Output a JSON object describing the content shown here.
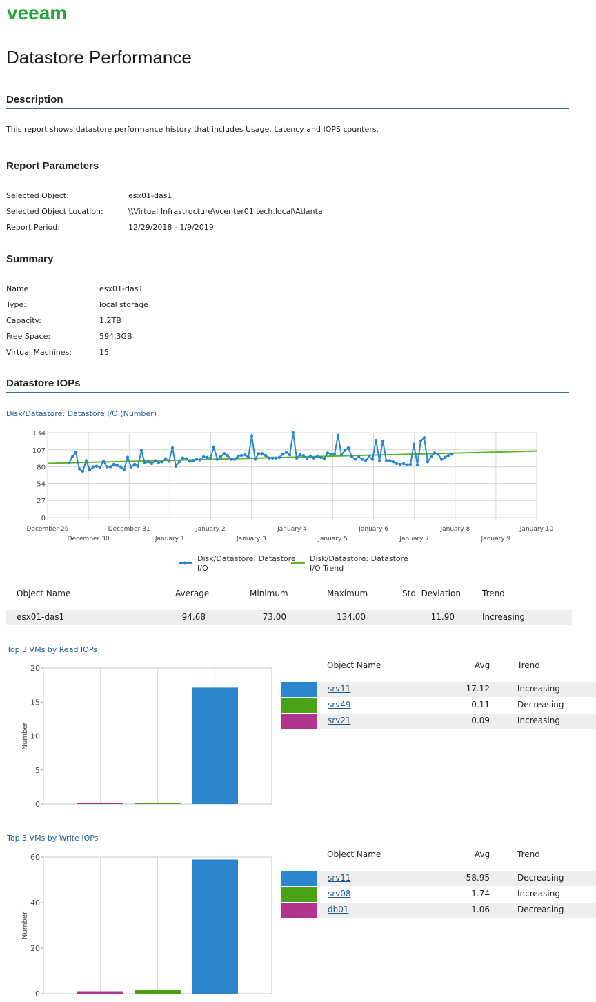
{
  "logo": "veeam",
  "page_title": "Datastore Performance",
  "colors": {
    "accent": "#22a637",
    "rule": "#3a6f93",
    "blue": "#2986cc",
    "green": "#4aa317",
    "purple": "#b0348e",
    "trend": "#5cb623"
  },
  "description": {
    "heading": "Description",
    "text": "This report shows datastore performance history that includes Usage, Latency and IOPS counters."
  },
  "parameters": {
    "heading": "Report Parameters",
    "items": [
      {
        "label": "Selected Object:",
        "value": "esx01-das1"
      },
      {
        "label": "Selected Object Location:",
        "value": "\\\\Virtual Infrastructure\\vcenter01.tech.local\\Atlanta"
      },
      {
        "label": "Report Period:",
        "value": "12/29/2018 - 1/9/2019"
      }
    ]
  },
  "summary": {
    "heading": "Summary",
    "items": [
      {
        "label": "Name:",
        "value": "esx01-das1"
      },
      {
        "label": "Type:",
        "value": "local storage"
      },
      {
        "label": "Capacity:",
        "value": "1.2TB"
      },
      {
        "label": "Free Space:",
        "value": "594.3GB"
      },
      {
        "label": "Virtual Machines:",
        "value": "15"
      }
    ]
  },
  "iops_section": {
    "heading": "Datastore IOPs",
    "chart_title": "Disk/Datastore: Datastore I/O (Number)",
    "table": {
      "headers": [
        "Object Name",
        "Average",
        "Minimum",
        "Maximum",
        "Std. Deviation",
        "Trend"
      ],
      "rows": [
        [
          "esx01-das1",
          "94.68",
          "73.00",
          "134.00",
          "11.90",
          "Increasing"
        ]
      ]
    }
  },
  "read_section": {
    "chart_title": "Top 3 VMs by Read IOPs",
    "headers": [
      "Object Name",
      "Avg",
      "Trend"
    ],
    "rows": [
      {
        "name": "srv11",
        "avg": "17.12",
        "trend": "Increasing",
        "color": "#2986cc"
      },
      {
        "name": "srv49",
        "avg": "0.11",
        "trend": "Decreasing",
        "color": "#4aa317"
      },
      {
        "name": "srv21",
        "avg": "0.09",
        "trend": "Increasing",
        "color": "#b0348e"
      }
    ]
  },
  "write_section": {
    "chart_title": "Top 3 VMs by Write IOPs",
    "headers": [
      "Object Name",
      "Avg",
      "Trend"
    ],
    "rows": [
      {
        "name": "srv11",
        "avg": "58.95",
        "trend": "Decreasing",
        "color": "#2986cc"
      },
      {
        "name": "srv08",
        "avg": "1.74",
        "trend": "Increasing",
        "color": "#4aa317"
      },
      {
        "name": "db01",
        "avg": "1.06",
        "trend": "Decreasing",
        "color": "#b0348e"
      }
    ]
  },
  "chart_data": [
    {
      "type": "line",
      "title": "Disk/Datastore: Datastore I/O (Number)",
      "y_ticks": [
        "134",
        "107",
        "80",
        "54",
        "27",
        "0"
      ],
      "ylim": [
        0,
        134
      ],
      "x_ticks": [
        "December 29",
        "December 30",
        "December 31",
        "January 1",
        "January 2",
        "January 3",
        "January 4",
        "January 5",
        "January 6",
        "January 7",
        "January 8",
        "January 9",
        "January 10"
      ],
      "series": [
        {
          "name": "Disk/Datastore: Datastore I/O",
          "values": [
            86,
            96,
            103,
            77,
            73,
            90,
            75,
            80,
            81,
            79,
            89,
            80,
            80,
            84,
            82,
            80,
            76,
            95,
            80,
            84,
            81,
            106,
            86,
            88,
            85,
            90,
            87,
            88,
            93,
            89,
            110,
            81,
            88,
            94,
            93,
            89,
            90,
            92,
            91,
            96,
            95,
            94,
            111,
            92,
            96,
            101,
            98,
            92,
            92,
            97,
            98,
            99,
            95,
            129,
            92,
            101,
            101,
            98,
            94,
            94,
            94,
            95,
            100,
            103,
            99,
            134,
            94,
            99,
            98,
            93,
            97,
            94,
            97,
            95,
            93,
            102,
            100,
            100,
            130,
            99,
            106,
            110,
            96,
            92,
            96,
            92,
            90,
            96,
            92,
            122,
            90,
            121,
            90,
            90,
            88,
            85,
            84,
            85,
            83,
            84,
            116,
            83,
            121,
            126,
            88,
            96,
            102,
            100,
            92,
            95,
            98,
            100
          ],
          "color": "#2986cc"
        },
        {
          "name": "Disk/Datastore: Datastore I/O Trend",
          "start": 85.5,
          "end": 105,
          "color": "#5cb623"
        }
      ],
      "legend": [
        "Disk/Datastore: Datastore I/O",
        "Disk/Datastore: Datastore I/O Trend"
      ]
    },
    {
      "type": "bar",
      "title": "Top 3 VMs by Read IOPs",
      "ylabel": "Number",
      "categories": [
        "srv21",
        "srv49",
        "srv11"
      ],
      "values": [
        0.09,
        0.11,
        17.12
      ],
      "y_ticks": [
        "20",
        "15",
        "10",
        "5",
        "0"
      ],
      "ylim": [
        0,
        20
      ]
    },
    {
      "type": "bar",
      "title": "Top 3 VMs by Write IOPs",
      "ylabel": "Number",
      "categories": [
        "db01",
        "srv08",
        "srv11"
      ],
      "values": [
        1.06,
        1.74,
        58.95
      ],
      "y_ticks": [
        "60",
        "40",
        "20",
        "0"
      ],
      "ylim": [
        0,
        60
      ]
    }
  ]
}
